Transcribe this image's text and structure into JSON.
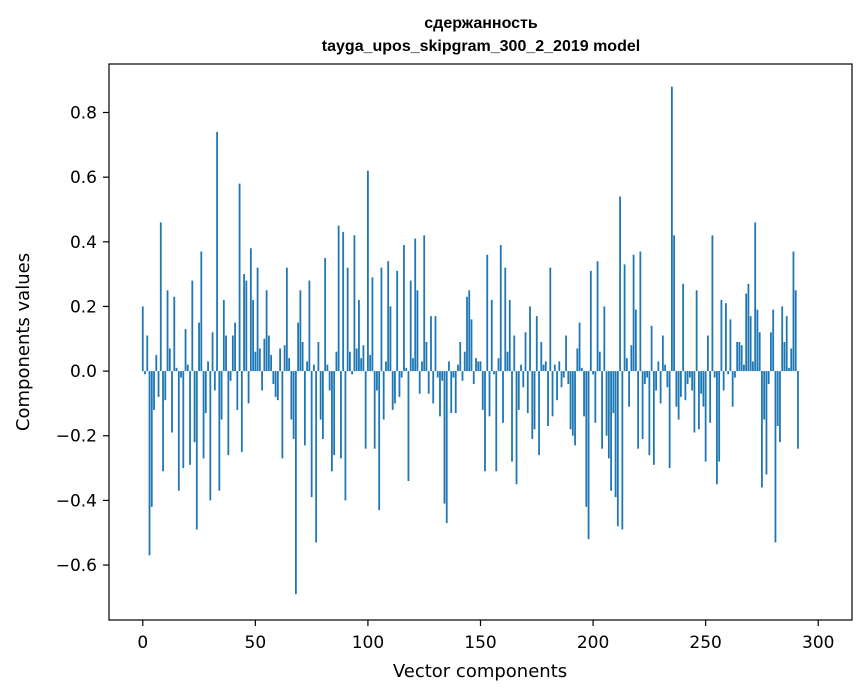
{
  "chart_data": {
    "type": "bar",
    "title": "сдержанность",
    "subtitle": "tayga_upos_skipgram_300_2_2019 model",
    "xlabel": "Vector components",
    "ylabel": "Components values",
    "xlim": [
      -15,
      315
    ],
    "ylim": [
      -0.77,
      0.95
    ],
    "xticks": [
      0,
      50,
      100,
      150,
      200,
      250,
      300
    ],
    "yticks": [
      -0.6,
      -0.4,
      -0.2,
      0.0,
      0.2,
      0.4,
      0.6,
      0.8
    ],
    "ytick_labels": [
      "−0.6",
      "−0.4",
      "−0.2",
      "0.0",
      "0.2",
      "0.4",
      "0.6",
      "0.8"
    ],
    "xtick_labels": [
      "0",
      "50",
      "100",
      "150",
      "200",
      "250",
      "300"
    ],
    "bar_color": "#1f77b4",
    "grid": false,
    "values": [
      0.2,
      -0.01,
      0.11,
      -0.57,
      -0.42,
      -0.12,
      0.05,
      -0.08,
      0.46,
      -0.31,
      -0.09,
      0.25,
      0.07,
      -0.19,
      0.23,
      0.01,
      -0.37,
      -0.02,
      -0.3,
      0.13,
      0.02,
      -0.29,
      0.28,
      -0.22,
      -0.49,
      0.15,
      0.37,
      -0.27,
      -0.13,
      0.03,
      -0.4,
      0.12,
      -0.06,
      0.74,
      -0.37,
      -0.15,
      0.22,
      0.11,
      -0.26,
      -0.03,
      0.11,
      0.15,
      -0.12,
      0.58,
      -0.25,
      0.3,
      0.28,
      -0.1,
      0.38,
      0.22,
      0.06,
      0.32,
      0.07,
      -0.06,
      0.1,
      0.25,
      0.11,
      0.05,
      -0.04,
      -0.08,
      -0.09,
      0.07,
      -0.27,
      0.08,
      0.32,
      0.04,
      -0.15,
      -0.21,
      -0.69,
      0.15,
      0.25,
      0.09,
      -0.23,
      0.03,
      0.28,
      -0.39,
      0.02,
      -0.53,
      0.09,
      -0.15,
      -0.21,
      0.35,
      0.02,
      -0.06,
      -0.31,
      -0.26,
      0.06,
      0.45,
      -0.27,
      0.43,
      -0.4,
      0.32,
      0.06,
      -0.01,
      0.42,
      0.07,
      0.22,
      0.04,
      0.08,
      -0.24,
      0.62,
      0.05,
      0.29,
      -0.24,
      -0.06,
      -0.43,
      0.32,
      -0.15,
      0.03,
      0.34,
      0.2,
      -0.12,
      -0.1,
      0.31,
      -0.08,
      -0.02,
      0.39,
      0.01,
      -0.34,
      0.28,
      0.04,
      0.41,
      0.25,
      -0.07,
      0.03,
      0.42,
      0.09,
      -0.07,
      0.17,
      -0.1,
      0.17,
      -0.02,
      -0.14,
      -0.03,
      -0.41,
      -0.47,
      0.03,
      -0.13,
      -0.02,
      -0.13,
      0.02,
      0.09,
      -0.03,
      0.06,
      0.23,
      0.25,
      0.16,
      -0.04,
      0.04,
      0.03,
      0.03,
      -0.12,
      -0.31,
      0.36,
      -0.14,
      0.22,
      -0.01,
      -0.31,
      0.04,
      0.39,
      -0.16,
      0.32,
      0.06,
      0.22,
      -0.28,
      0.11,
      -0.35,
      -0.12,
      0.02,
      -0.05,
      0.12,
      -0.13,
      0.2,
      -0.21,
      -0.18,
      0.17,
      -0.26,
      0.09,
      0.02,
      0.03,
      -0.17,
      0.32,
      -0.14,
      0.02,
      -0.09,
      0.03,
      -0.05,
      -0.02,
      0.11,
      -0.04,
      -0.18,
      -0.2,
      -0.23,
      0.07,
      0.15,
      0.01,
      -0.14,
      -0.42,
      -0.52,
      0.31,
      -0.01,
      -0.16,
      0.34,
      0.06,
      -0.24,
      0.2,
      -0.2,
      -0.27,
      -0.37,
      -0.13,
      -0.39,
      -0.48,
      0.54,
      -0.49,
      0.33,
      0.04,
      -0.11,
      0.08,
      0.36,
      0.19,
      -0.24,
      0.37,
      -0.21,
      -0.04,
      -0.02,
      -0.26,
      0.14,
      -0.29,
      -0.06,
      0.03,
      -0.1,
      0.11,
      0.02,
      -0.05,
      -0.3,
      0.88,
      0.42,
      -0.11,
      -0.15,
      -0.08,
      0.27,
      -0.09,
      -0.04,
      -0.02,
      -0.06,
      -0.19,
      0.25,
      -0.18,
      -0.07,
      -0.11,
      -0.28,
      0.11,
      -0.16,
      0.42,
      -0.02,
      -0.35,
      -0.28,
      0.22,
      -0.06,
      0.21,
      -0.01,
      0.16,
      -0.11,
      -0.02,
      0.09,
      0.09,
      0.08,
      0.02,
      0.24,
      0.27,
      0.17,
      0.03,
      0.46,
      0.19,
      0.12,
      -0.36,
      -0.15,
      -0.32,
      -0.04,
      0.12,
      0.19,
      -0.53,
      -0.17,
      -0.22,
      0.2,
      0.09,
      0.17,
      0.01,
      0.07,
      0.37,
      0.25,
      -0.24
    ]
  }
}
